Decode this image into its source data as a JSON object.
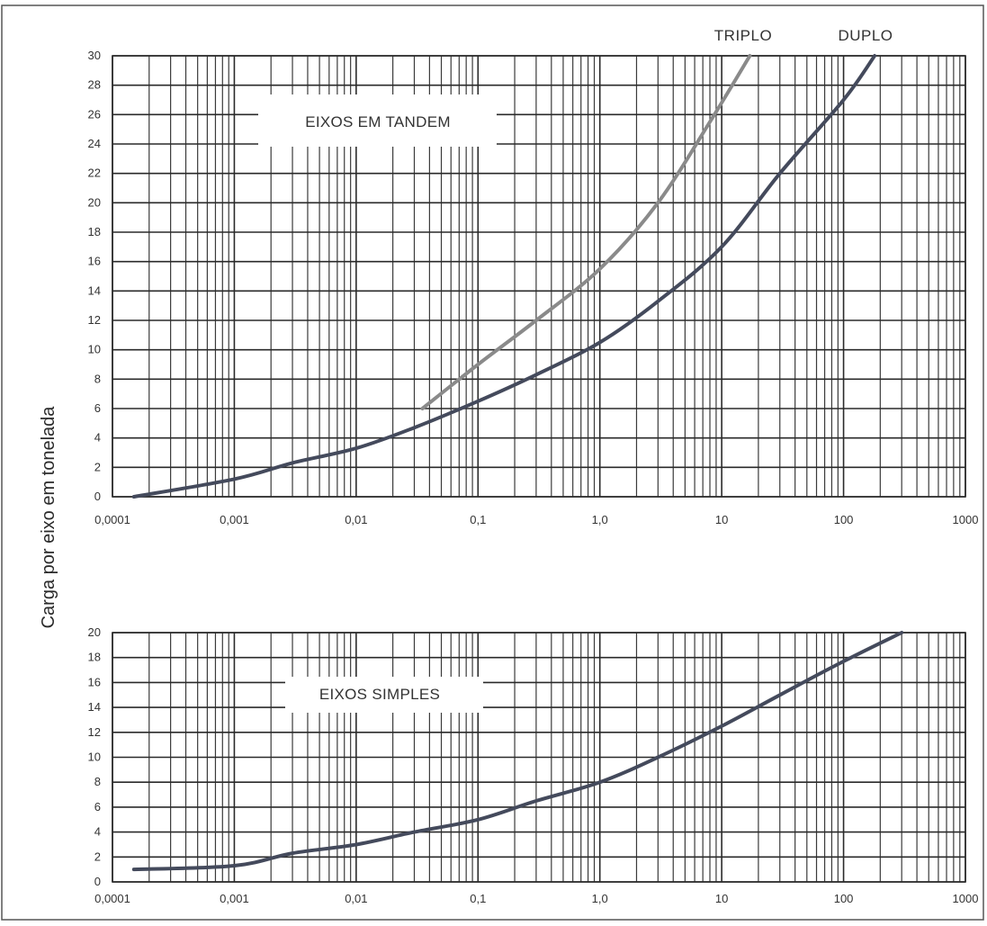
{
  "y_axis_label": "Carga por eixo em tonelada",
  "chart_data": [
    {
      "type": "line",
      "box_label": "EIXOS EM TANDEM",
      "x_scale": "log",
      "xlim": [
        0.0001,
        1000
      ],
      "ylim": [
        0,
        30
      ],
      "grid": true,
      "y_ticks": [
        "30",
        "28",
        "26",
        "24",
        "22",
        "20",
        "18",
        "16",
        "14",
        "12",
        "10",
        "8",
        "6",
        "4",
        "2",
        "0"
      ],
      "x_ticks": [
        "0,0001",
        "0,001",
        "0,01",
        "0,1",
        "1,0",
        "10",
        "100",
        "1000"
      ],
      "series": [
        {
          "name": "TRIPLO",
          "color": "#8a8a8a",
          "points": [
            [
              0.035,
              6.0
            ],
            [
              0.1,
              9.0
            ],
            [
              0.3,
              12.0
            ],
            [
              1.0,
              15.5
            ],
            [
              3.0,
              20.0
            ],
            [
              8.0,
              25.5
            ],
            [
              17.0,
              30.0
            ]
          ]
        },
        {
          "name": "DUPLO",
          "color": "#444a5c",
          "points": [
            [
              0.00015,
              0.0
            ],
            [
              0.001,
              1.2
            ],
            [
              0.003,
              2.3
            ],
            [
              0.01,
              3.3
            ],
            [
              0.03,
              4.7
            ],
            [
              0.1,
              6.5
            ],
            [
              0.3,
              8.3
            ],
            [
              1.0,
              10.5
            ],
            [
              3.0,
              13.3
            ],
            [
              10.0,
              17.0
            ],
            [
              30.0,
              22.0
            ],
            [
              100.0,
              27.0
            ],
            [
              180.0,
              30.0
            ]
          ]
        }
      ]
    },
    {
      "type": "line",
      "box_label": "EIXOS SIMPLES",
      "x_scale": "log",
      "xlim": [
        0.0001,
        1000
      ],
      "ylim": [
        0,
        20
      ],
      "grid": true,
      "y_ticks": [
        "20",
        "18",
        "16",
        "14",
        "12",
        "10",
        "8",
        "6",
        "4",
        "2",
        "0"
      ],
      "x_ticks": [
        "0,0001",
        "0,001",
        "0,01",
        "0,1",
        "1,0",
        "10",
        "100",
        "1000"
      ],
      "series": [
        {
          "name": "",
          "color": "#444a5c",
          "points": [
            [
              0.00015,
              1.0
            ],
            [
              0.001,
              1.3
            ],
            [
              0.003,
              2.3
            ],
            [
              0.01,
              3.0
            ],
            [
              0.03,
              4.0
            ],
            [
              0.1,
              5.0
            ],
            [
              0.3,
              6.5
            ],
            [
              1.0,
              8.0
            ],
            [
              3.0,
              10.0
            ],
            [
              10.0,
              12.5
            ],
            [
              30.0,
              15.0
            ],
            [
              100.0,
              17.7
            ],
            [
              300.0,
              20.0
            ]
          ]
        }
      ]
    }
  ]
}
